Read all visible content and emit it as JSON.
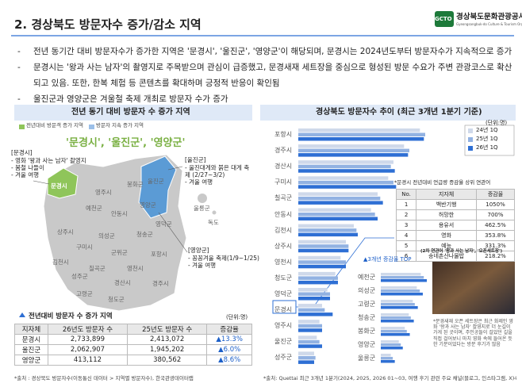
{
  "header": {
    "title": "2. 경상북도 방문자수 증가/감소 지역",
    "logo_mark": "GCTO",
    "logo_name": "경상북도문화관광공사",
    "logo_sub": "Gyeongsangbuk-do Culture & Tourism Organization"
  },
  "bullets": [
    "전년 동기간 대비 방문자수가 증가한 지역은 '문경시', '울진군', '영양군'이 해당되며, 문경시는 2024년도부터 방문자수가 지속적으로 증가",
    "문경시는 '왕과 사는 남자'의 촬영지로 주목받으며 관심이 급증했고, 문경새재 세트장을 중심으로 형성된 방문 수요가 주변 관광코스로 확산되고 있음. 또한, 한복 체험 등 콘텐츠를 확대하며 긍정적 반응이 확인됨",
    "울진군과 영양군은 겨울철 축제 개최로 방문자 수가 증가"
  ],
  "left_panel": {
    "title": "전년 동기 대비 방문자 수 증가 지역",
    "legend": [
      "전년대비 방문객 증가 지역",
      "방문자 지속 증가 지역"
    ],
    "highlight": "'문경시', '울진군', '영양군'",
    "callouts": [
      {
        "title": "[문경시]",
        "items": [
          "- 영화 '왕과 사는 남자' 촬영지",
          "- 봄철 나들이",
          "- 겨울 여행"
        ]
      },
      {
        "title": "[울진군]",
        "items": [
          "- 울진대게와 붉은 대게 축제 (2/27~3/2)",
          "- 겨울 여행"
        ]
      },
      {
        "title": "[영양군]",
        "items": [
          "- 꽁꽁겨울 축제(1/9~1/25)",
          "- 겨울 여행"
        ]
      }
    ],
    "map_labels": [
      "영주시",
      "봉화군",
      "울진군",
      "문경시",
      "예천군",
      "안동시",
      "영양군",
      "영덕군",
      "울릉군",
      "독도",
      "상주시",
      "의성군",
      "청송군",
      "구미시",
      "군위군",
      "포항시",
      "김천시",
      "칠곡군",
      "영천시",
      "성주군",
      "경산시",
      "경주시",
      "고령군",
      "청도군"
    ],
    "table": {
      "title": "전년대비 방문자 수 증가 지역",
      "unit": "(단위:명)",
      "columns": [
        "지자체",
        "26년도 방문자 수",
        "25년도 방문자 수",
        "증감율"
      ],
      "rows": [
        [
          "문경시",
          "2,733,899",
          "2,413,072",
          "▲13.3%"
        ],
        [
          "울진군",
          "2,062,907",
          "1,945,202",
          "▲6.0%"
        ],
        [
          "영양군",
          "413,112",
          "380,562",
          "▲8.6%"
        ]
      ]
    },
    "source": "*출처 : 경상북도 방문자수(이동통신 데이터 > 지역별 방문자수), 한국관광데이터랩"
  },
  "right_panel": {
    "title": "경상북도 방문자수 추이 (최근 3개년 1분기 기준)",
    "chart": {
      "type": "bar",
      "unit": "(단위:명)",
      "categories": [
        "포항시",
        "경주시",
        "경산시",
        "구미시",
        "칠곡군",
        "안동시",
        "김천시",
        "상주시",
        "영천시",
        "청도군",
        "영덕군",
        "문경시",
        "영주시",
        "울진군",
        "성주군"
      ],
      "series": [
        {
          "name": "24년 1Q",
          "color": "#cfd9ea",
          "values": [
            92,
            80,
            72,
            68,
            60,
            55,
            42,
            36,
            32,
            28,
            22,
            18,
            16,
            14,
            12
          ]
        },
        {
          "name": "25년 1Q",
          "color": "#92b2e2",
          "values": [
            96,
            84,
            70,
            72,
            62,
            58,
            44,
            38,
            36,
            30,
            24,
            20,
            18,
            16,
            13
          ]
        },
        {
          "name": "26년 1Q",
          "color": "#2e6fd4",
          "values": [
            95,
            83,
            73,
            74,
            64,
            60,
            45,
            38,
            36,
            30,
            24,
            26,
            18,
            18,
            12
          ]
        }
      ]
    },
    "related": {
      "title": "*문경시 전년대비 언급량 증감율 상위 연관어",
      "columns": [
        "No.",
        "지자체",
        "증감율"
      ],
      "rows": [
        [
          "1",
          "백반기행",
          "1050%"
        ],
        [
          "2",
          "허망한",
          "700%"
        ],
        [
          "3",
          "용유서",
          "462.5%"
        ],
        [
          "4",
          "영화",
          "353.8%"
        ],
        [
          "5",
          "예능",
          "331.3%"
        ],
        [
          "6",
          "송네촌산나물밥",
          "218.2%"
        ]
      ]
    },
    "top_chart": {
      "type": "bar",
      "title": "▲3개년 증감율 TOP",
      "categories": [
        "예천군",
        "의성군",
        "고령군",
        "청송군",
        "봉화군",
        "영양군",
        "울릉군"
      ],
      "series": [
        {
          "color": "#cfd9ea",
          "values": [
            40,
            36,
            32,
            28,
            24,
            18,
            10
          ]
        },
        {
          "color": "#92b2e2",
          "values": [
            43,
            39,
            34,
            30,
            26,
            20,
            12
          ]
        },
        {
          "color": "#2e6fd4",
          "values": [
            46,
            42,
            37,
            33,
            29,
            22,
            14
          ]
        }
      ]
    },
    "photo_caption": "(2차 연관어 '왕과 사는 남자', '오픈세트장')",
    "photo_note": "*문경새재 오픈 세트장은 최근 화제인 영화 '왕과 사는 남자' 촬영지로 더 눈길이 가게 된 곳이며, 주인공들이 걸었던 길을 직접 걸어보니 마치 영화 속에 들어온 듯한 기분이었다는 방문 후기가 많음",
    "source": "*출처: Quettai 최근 3개년 1분기(2024, 2025, 2026 01~03, 여행 후기 관련 주요 채널(블로그, 인스타그램, X)"
  },
  "page_number": "4"
}
